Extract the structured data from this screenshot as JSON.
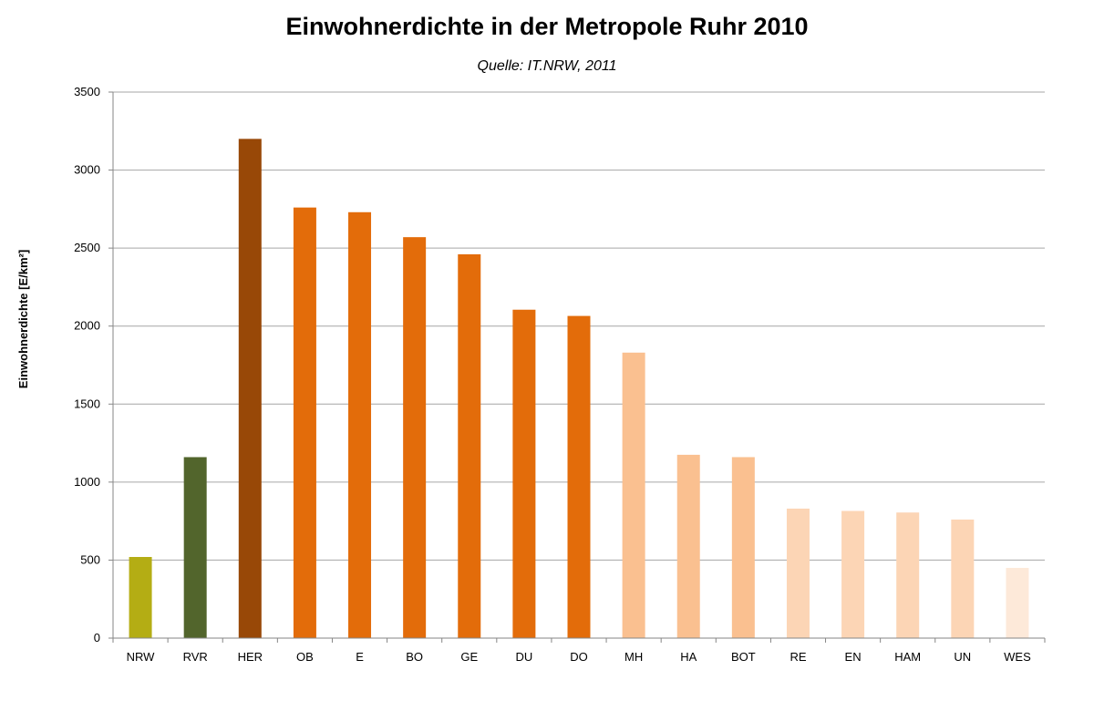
{
  "chart_data": {
    "type": "bar",
    "title": "Einwohnerdichte in der Metropole Ruhr 2010",
    "subtitle": "Quelle: IT.NRW, 2011",
    "xlabel": "",
    "ylabel": "Einwohnerdichte [E/km²]",
    "ylim": [
      0,
      3500
    ],
    "yticks": [
      0,
      500,
      1000,
      1500,
      2000,
      2500,
      3000,
      3500
    ],
    "grid": true,
    "categories": [
      "NRW",
      "RVR",
      "HER",
      "OB",
      "E",
      "BO",
      "GE",
      "DU",
      "DO",
      "MH",
      "HA",
      "BOT",
      "RE",
      "EN",
      "HAM",
      "UN",
      "WES"
    ],
    "values": [
      520,
      1160,
      3200,
      2760,
      2730,
      2570,
      2460,
      2105,
      2065,
      1830,
      1175,
      1160,
      830,
      815,
      805,
      760,
      450
    ],
    "colors": [
      "#b4ad14",
      "#52652c",
      "#984807",
      "#e36c0a",
      "#e36c0a",
      "#e36c0a",
      "#e36c0a",
      "#e36c0a",
      "#e36c0a",
      "#fac090",
      "#fac090",
      "#fac090",
      "#fcd5b5",
      "#fcd5b5",
      "#fcd5b5",
      "#fcd5b5",
      "#fde9d9"
    ]
  }
}
